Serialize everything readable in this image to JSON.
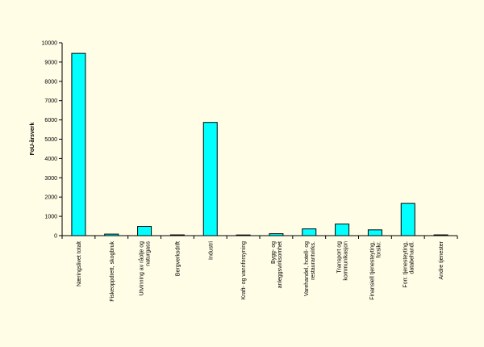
{
  "chart_data": {
    "type": "bar",
    "title": "",
    "xlabel": "",
    "ylabel": "FoU-årsverk",
    "ylim": [
      0,
      10000
    ],
    "yticks": [
      0,
      1000,
      2000,
      3000,
      4000,
      5000,
      6000,
      7000,
      8000,
      9000,
      10000
    ],
    "grid": false,
    "categories": [
      [
        "Næringslivet totalt"
      ],
      [
        "Fiskeoppdrett, skogbruk"
      ],
      [
        "Utvinning av råolje og",
        "naturgass"
      ],
      [
        "Bergverksdrift"
      ],
      [
        "Industri"
      ],
      [
        "Kraft- og vannforsyning"
      ],
      [
        "Bygg- og",
        "anleggsvirksomhet"
      ],
      [
        "Varehandel, hotell- og",
        "restaurantvirks."
      ],
      [
        "Transport og",
        "kommunikasjon"
      ],
      [
        "Finansiell tjenesteyting,",
        "forsikr."
      ],
      [
        "Forr. tjenesteyting,",
        "databehandl."
      ],
      [
        "Andre tjenester"
      ]
    ],
    "values": [
      9450,
      80,
      480,
      40,
      5870,
      35,
      100,
      350,
      600,
      300,
      1670,
      40
    ],
    "bar_color": "#00ffff",
    "bar_stroke": "#000000",
    "background": "#fffde6"
  }
}
